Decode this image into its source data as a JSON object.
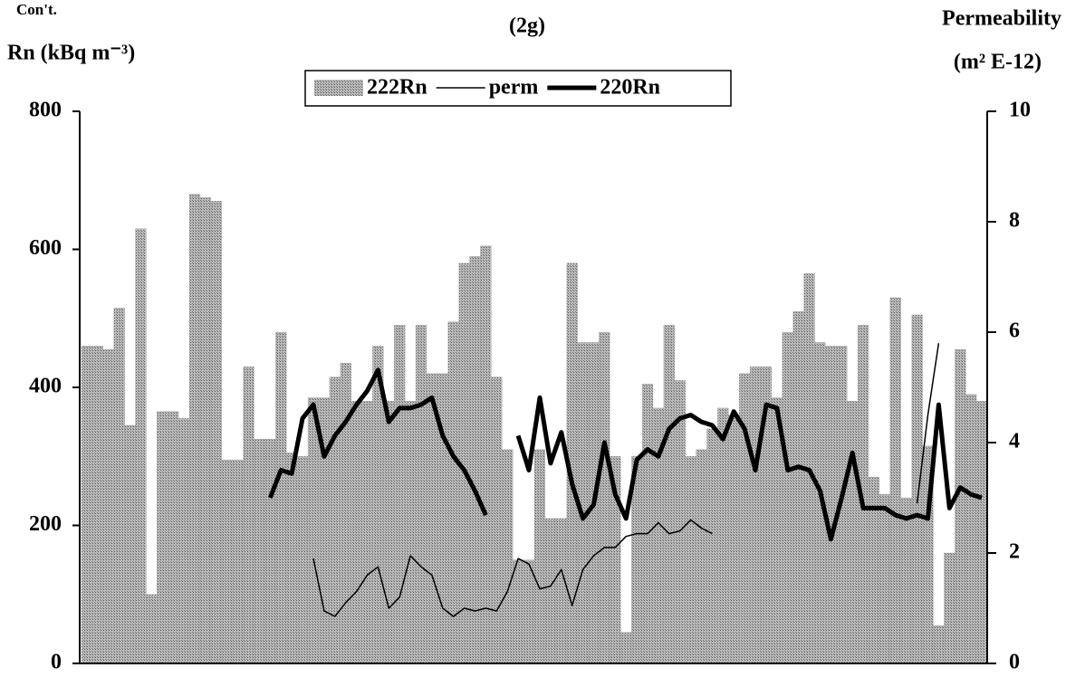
{
  "chart_data": {
    "type": "bar",
    "title": "(2g)",
    "note": "Con't.",
    "ylabel": "Rn (kBq m⁻³)",
    "y2label": [
      "Permeability",
      "(m² E-12)"
    ],
    "categories": [
      null,
      null,
      null,
      null,
      null,
      null,
      null,
      null,
      null,
      null,
      null,
      null,
      null,
      null,
      null,
      null,
      null,
      null,
      null,
      null,
      null,
      null,
      null,
      null,
      null,
      null,
      null,
      null,
      null,
      null,
      null,
      null,
      null,
      null,
      null,
      null,
      null,
      null,
      null,
      null,
      null,
      null,
      null,
      null,
      null,
      null,
      null,
      null,
      null,
      null,
      null,
      null,
      null,
      null,
      null,
      null,
      null,
      null,
      null,
      null,
      null,
      null,
      null,
      null,
      null,
      null,
      null,
      null,
      null,
      null,
      null,
      null,
      null,
      null,
      null,
      null,
      null,
      null,
      null,
      null,
      null,
      null,
      null,
      null
    ],
    "ylim": [
      0,
      800
    ],
    "yticks": [
      0,
      200,
      400,
      600,
      800
    ],
    "y2lim": [
      0,
      10
    ],
    "y2ticks": [
      0,
      2,
      4,
      6,
      8,
      10
    ],
    "series": [
      {
        "name": "222Rn",
        "type": "bar",
        "color": "#9c9c9c",
        "values": [
          460,
          460,
          455,
          515,
          345,
          630,
          100,
          365,
          365,
          355,
          680,
          675,
          670,
          295,
          295,
          430,
          325,
          325,
          480,
          305,
          300,
          385,
          385,
          415,
          435,
          380,
          380,
          460,
          380,
          490,
          380,
          490,
          420,
          420,
          495,
          580,
          590,
          605,
          415,
          310,
          150,
          150,
          310,
          210,
          210,
          580,
          465,
          465,
          480,
          300,
          45,
          300,
          405,
          370,
          490,
          410,
          300,
          310,
          340,
          370,
          360,
          420,
          430,
          430,
          385,
          480,
          510,
          565,
          465,
          460,
          460,
          380,
          490,
          270,
          245,
          530,
          240,
          505,
          315,
          55,
          160,
          455,
          390,
          380
        ]
      },
      {
        "name": "perm",
        "type": "line",
        "axis": "y2",
        "color": "#000000",
        "width": 1.5,
        "values": [
          null,
          null,
          null,
          null,
          null,
          null,
          null,
          null,
          null,
          null,
          null,
          null,
          null,
          null,
          null,
          null,
          null,
          null,
          null,
          null,
          null,
          1.9,
          0.95,
          0.85,
          1.1,
          1.3,
          1.6,
          1.75,
          1.0,
          1.2,
          1.95,
          1.75,
          1.6,
          1.0,
          0.85,
          1.0,
          0.95,
          1.0,
          0.95,
          1.3,
          1.9,
          1.8,
          1.35,
          1.4,
          1.7,
          1.05,
          1.7,
          1.95,
          2.1,
          2.1,
          2.3,
          2.35,
          2.35,
          2.55,
          2.35,
          2.4,
          2.6,
          2.45,
          2.35,
          null,
          null,
          null,
          null,
          null,
          null,
          null,
          null,
          null,
          null,
          null,
          null,
          null,
          null,
          null,
          null,
          null,
          null,
          2.9,
          4.5,
          5.8,
          null,
          null,
          null,
          null
        ]
      },
      {
        "name": "220Rn",
        "type": "line",
        "color": "#000000",
        "width": 5,
        "values": [
          null,
          null,
          null,
          null,
          null,
          null,
          null,
          null,
          null,
          null,
          null,
          null,
          null,
          null,
          null,
          null,
          null,
          240,
          280,
          275,
          355,
          375,
          300,
          330,
          350,
          375,
          395,
          425,
          350,
          370,
          370,
          375,
          385,
          330,
          300,
          280,
          250,
          215,
          null,
          null,
          330,
          280,
          385,
          290,
          335,
          260,
          210,
          230,
          320,
          245,
          210,
          295,
          310,
          300,
          340,
          355,
          360,
          350,
          345,
          325,
          365,
          340,
          280,
          375,
          370,
          280,
          285,
          280,
          250,
          180,
          240,
          305,
          225,
          225,
          225,
          215,
          210,
          215,
          210,
          375,
          225,
          255,
          245,
          240
        ]
      }
    ]
  }
}
